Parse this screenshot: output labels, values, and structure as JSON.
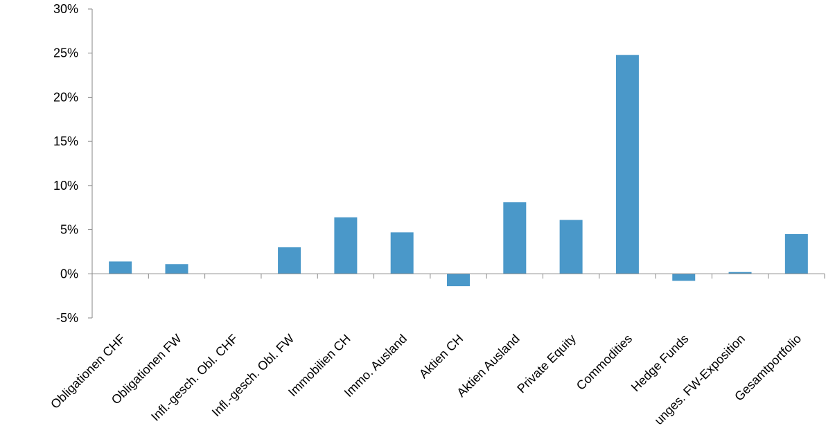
{
  "chart_data": {
    "type": "bar",
    "categories": [
      "Obligationen CHF",
      "Obligationen FW",
      "Infl.-gesch. Obl. CHF",
      "Infl.-gesch. Obl. FW",
      "Immobilien CH",
      "Immo. Ausland",
      "Aktien CH",
      "Aktien Ausland",
      "Private Equity",
      "Commodities",
      "Hedge Funds",
      "unges. FW-Exposition",
      "Gesamtportfolio"
    ],
    "values": [
      1.4,
      1.1,
      0.0,
      3.0,
      6.4,
      4.7,
      -1.4,
      8.1,
      6.1,
      24.8,
      -0.8,
      0.2,
      4.5
    ],
    "ylim": [
      -5,
      30
    ],
    "yticks": [
      -5,
      0,
      5,
      10,
      15,
      20,
      25,
      30
    ],
    "ytick_labels": [
      "-5%",
      "0%",
      "5%",
      "10%",
      "15%",
      "20%",
      "25%",
      "30%"
    ],
    "title": "",
    "xlabel": "",
    "ylabel": "",
    "grid": false,
    "legend": "none",
    "bar_color": "#4a98c9",
    "axis_color": "#868686"
  }
}
